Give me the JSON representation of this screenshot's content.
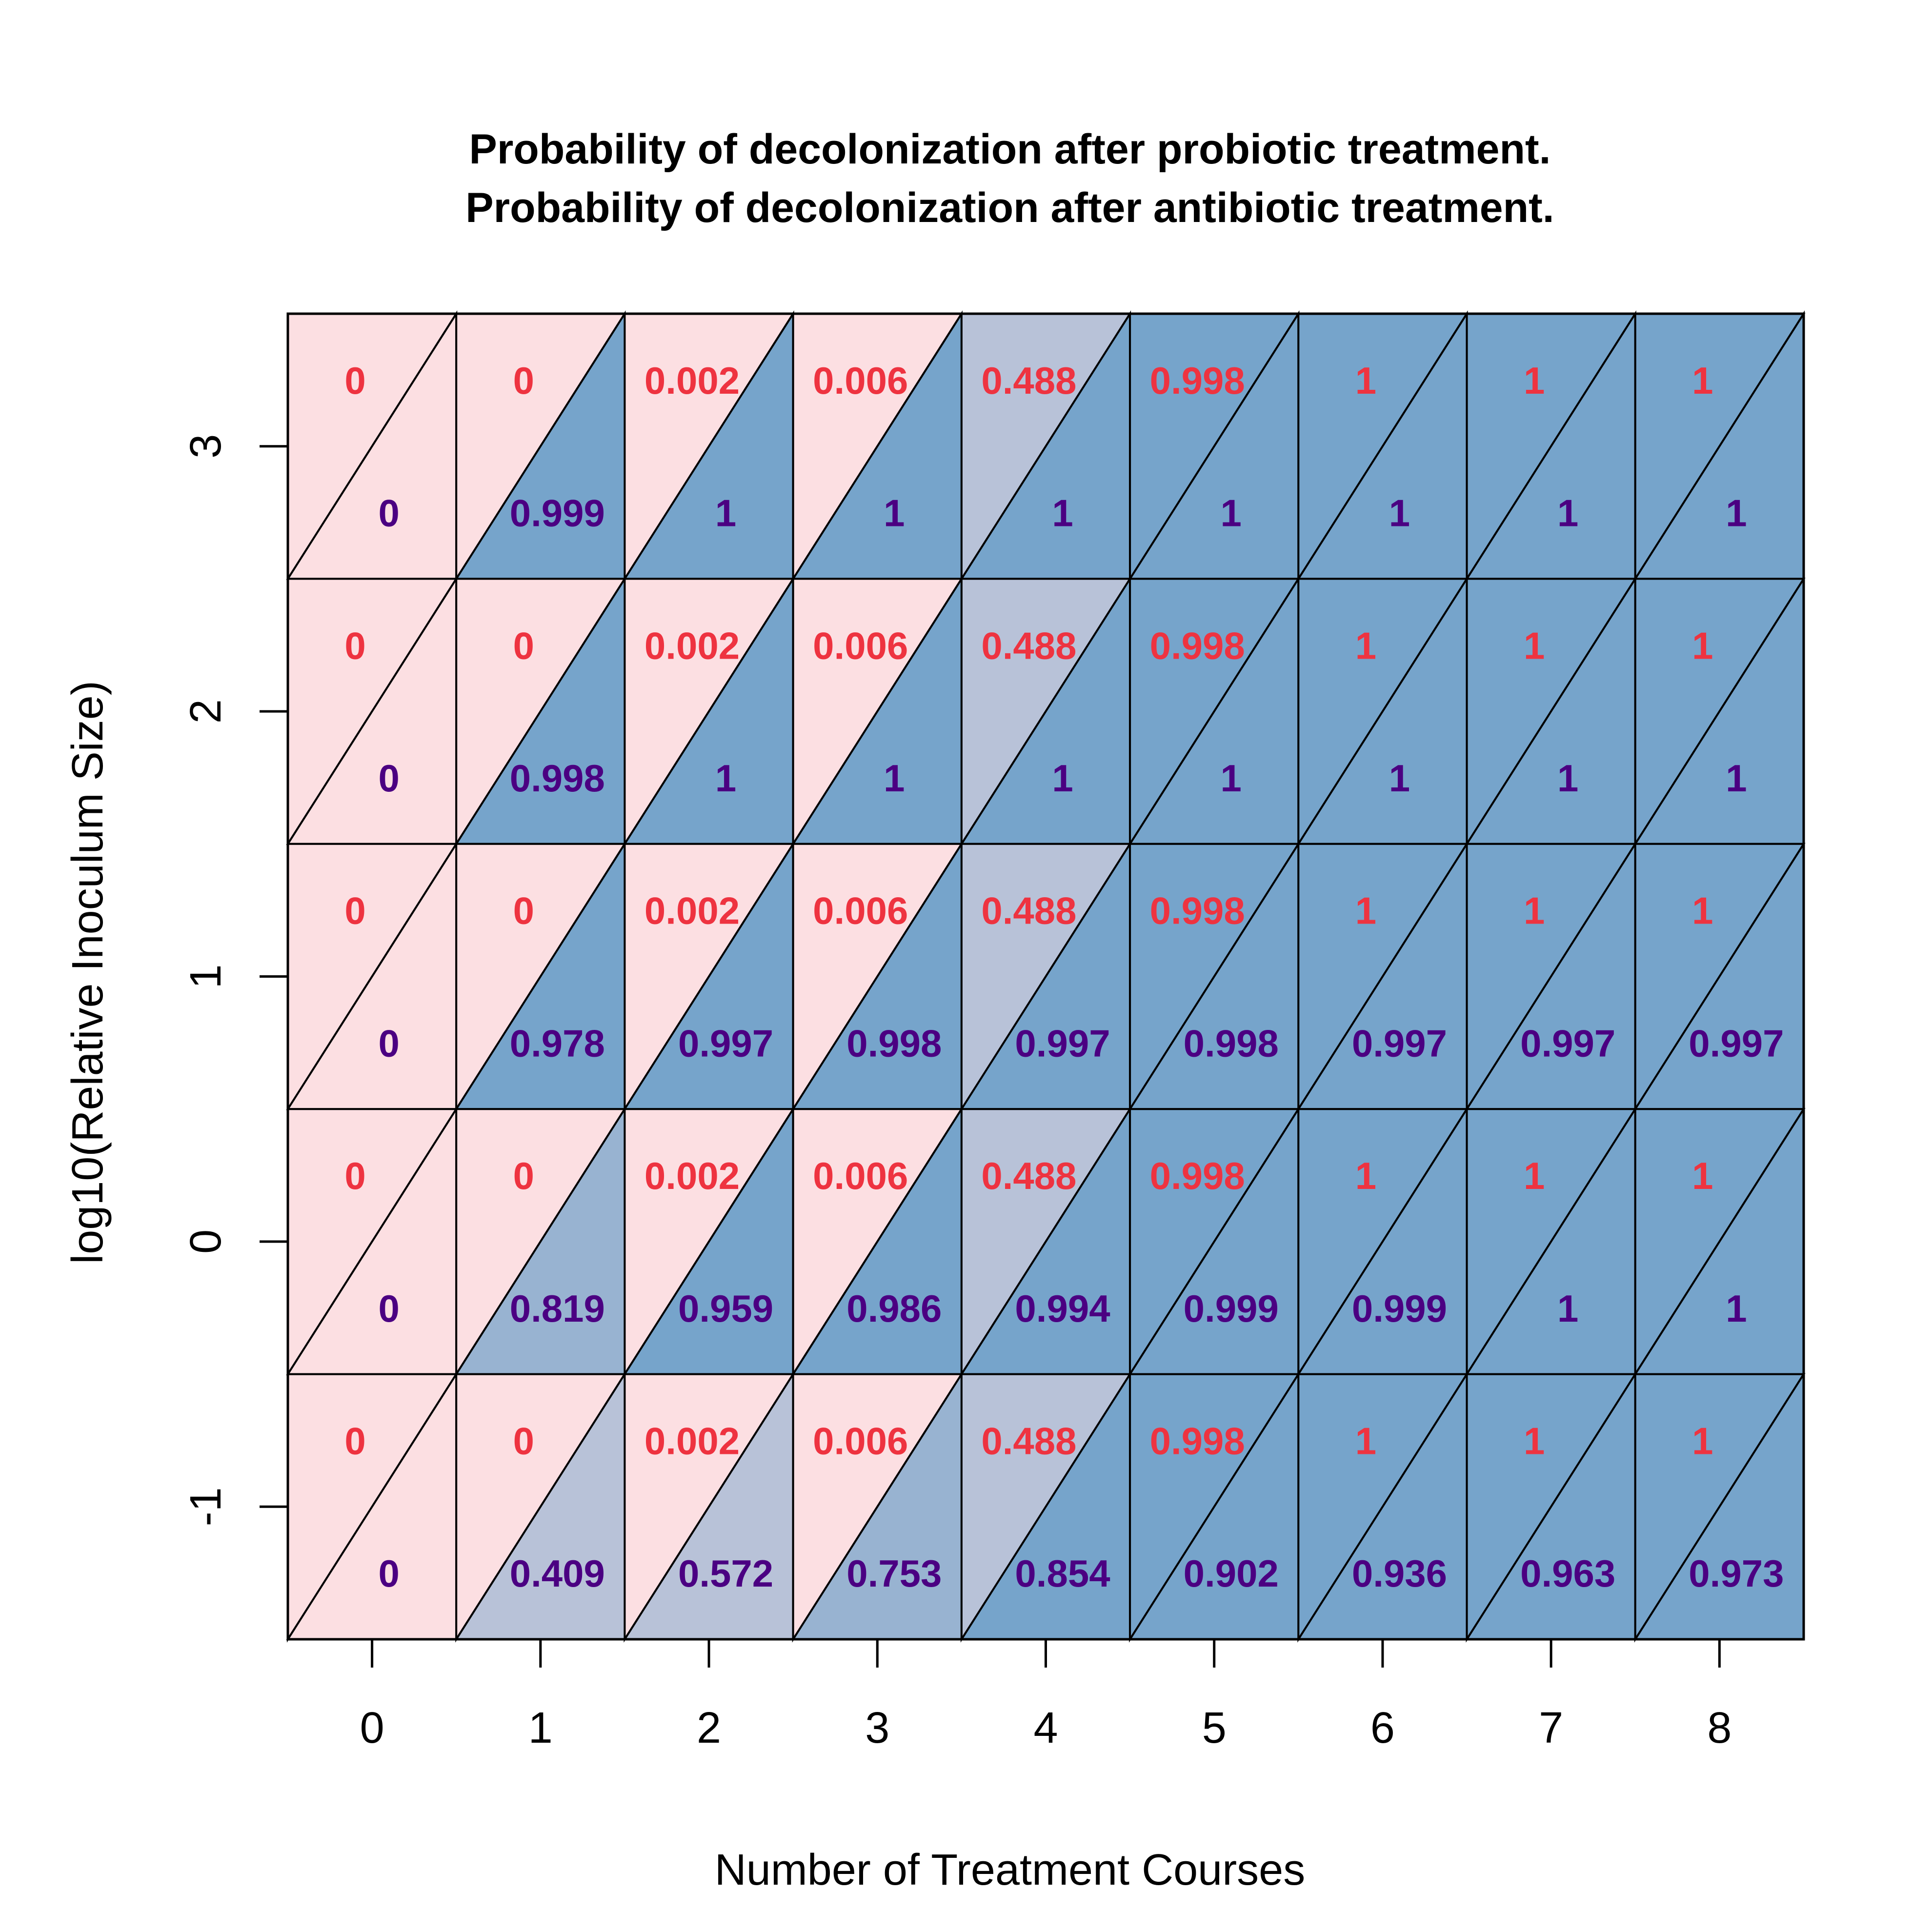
{
  "chart_data": {
    "type": "heatmap",
    "title_probiotic": "Probability of decolonization after probiotic treatment.",
    "title_antibiotic": "Probability of decolonization after antibiotic treatment.",
    "xlabel": "Number of Treatment Courses",
    "ylabel": "log10(Relative Inoculum Size)",
    "x": [
      0,
      1,
      2,
      3,
      4,
      5,
      6,
      7,
      8
    ],
    "y": [
      3,
      2,
      1,
      0,
      -1
    ],
    "x_ticks": [
      "0",
      "1",
      "2",
      "3",
      "4",
      "5",
      "6",
      "7",
      "8"
    ],
    "y_ticks": [
      "3",
      "2",
      "1",
      "0",
      "-1"
    ],
    "xlim": [
      -0.5,
      8.5
    ],
    "ylim": [
      -1.5,
      3.5
    ],
    "antibiotic_labels": [
      [
        "0",
        "0",
        "0.002",
        "0.006",
        "0.488",
        "0.998",
        "1",
        "1",
        "1"
      ],
      [
        "0",
        "0",
        "0.002",
        "0.006",
        "0.488",
        "0.998",
        "1",
        "1",
        "1"
      ],
      [
        "0",
        "0",
        "0.002",
        "0.006",
        "0.488",
        "0.998",
        "1",
        "1",
        "1"
      ],
      [
        "0",
        "0",
        "0.002",
        "0.006",
        "0.488",
        "0.998",
        "1",
        "1",
        "1"
      ],
      [
        "0",
        "0",
        "0.002",
        "0.006",
        "0.488",
        "0.998",
        "1",
        "1",
        "1"
      ]
    ],
    "probiotic_labels": [
      [
        "0",
        "0.999",
        "1",
        "1",
        "1",
        "1",
        "1",
        "1",
        "1"
      ],
      [
        "0",
        "0.998",
        "1",
        "1",
        "1",
        "1",
        "1",
        "1",
        "1"
      ],
      [
        "0",
        "0.978",
        "0.997",
        "0.998",
        "0.997",
        "0.998",
        "0.997",
        "0.997",
        "0.997"
      ],
      [
        "0",
        "0.819",
        "0.959",
        "0.986",
        "0.994",
        "0.999",
        "0.999",
        "1",
        "1"
      ],
      [
        "0",
        "0.409",
        "0.572",
        "0.753",
        "0.854",
        "0.902",
        "0.936",
        "0.963",
        "0.973"
      ]
    ],
    "colors": {
      "probiotic_text": "#4B0082",
      "antibiotic_text": "#EE3340",
      "low_fill": "#FCDFE2",
      "mid_fill": "#B8C2D8",
      "mid2_fill": "#98B3D1",
      "high_fill": "#76A4CB",
      "border": "#000000"
    },
    "legend": "none",
    "grid": false
  }
}
